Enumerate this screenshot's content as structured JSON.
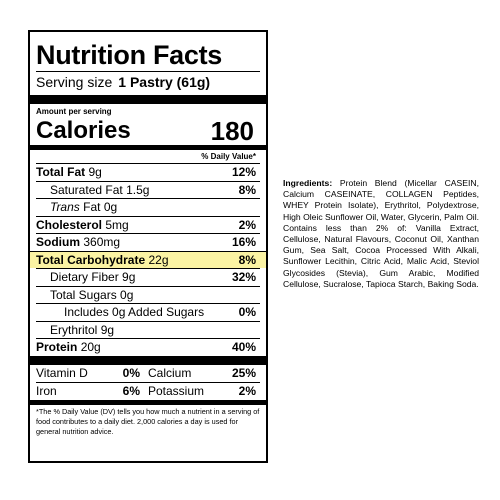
{
  "label": {
    "title": "Nutrition Facts",
    "serving_label": "Serving size",
    "serving_value": "1 Pastry (61g)",
    "amount_per_serving": "Amount per serving",
    "calories_label": "Calories",
    "calories_value": "180",
    "dv_header": "% Daily Value*",
    "rows": {
      "total_fat": {
        "name": "Total Fat",
        "amount": "9g",
        "dv": "12%"
      },
      "saturated_fat": {
        "name": "Saturated Fat",
        "amount": "1.5g",
        "dv": "8%"
      },
      "trans_fat": {
        "name": "Trans",
        "suffix": "Fat 0g"
      },
      "cholesterol": {
        "name": "Cholesterol",
        "amount": "5mg",
        "dv": "2%"
      },
      "sodium": {
        "name": "Sodium",
        "amount": "360mg",
        "dv": "16%"
      },
      "total_carb": {
        "name": "Total Carbohydrate",
        "amount": "22g",
        "dv": "8%"
      },
      "fiber": {
        "name": "Dietary Fiber",
        "amount": "9g",
        "dv": "32%"
      },
      "total_sugars": {
        "name": "Total Sugars",
        "amount": "0g"
      },
      "added_sugars": {
        "name": "Includes 0g Added Sugars",
        "dv": "0%"
      },
      "erythritol": {
        "name": "Erythritol",
        "amount": "9g"
      },
      "protein": {
        "name": "Protein",
        "amount": "20g",
        "dv": "40%"
      }
    },
    "vitamins": [
      {
        "left_name": "Vitamin D",
        "left_dv": "0%",
        "right_name": "Calcium",
        "right_dv": "25%"
      },
      {
        "left_name": "Iron",
        "left_dv": "6%",
        "right_name": "Potassium",
        "right_dv": "2%"
      }
    ],
    "footnote": "*The % Daily Value (DV) tells you how much a nutrient in a serving of food contributes to a daily diet. 2,000 calories a day is used for general nutrition advice.",
    "highlight_color": "#fbf3a3"
  },
  "ingredients": {
    "heading": "Ingredients:",
    "text": "Protein Blend (Micellar CASEIN, Calcium CASEINATE, COLLAGEN Peptides, WHEY Protein Isolate), Erythritol, Polydextrose, High Oleic Sunflower Oil, Water, Glycerin, Palm Oil. Contains less than 2% of: Vanilla Extract, Cellulose, Natural Flavours, Coconut Oil, Xanthan Gum, Sea Salt, Cocoa Processed With Alkali, Sunflower Lecithin, Citric Acid, Malic Acid, Steviol Glycosides (Stevia), Gum Arabic, Modified Cellulose, Sucralose, Tapioca Starch, Baking Soda."
  }
}
